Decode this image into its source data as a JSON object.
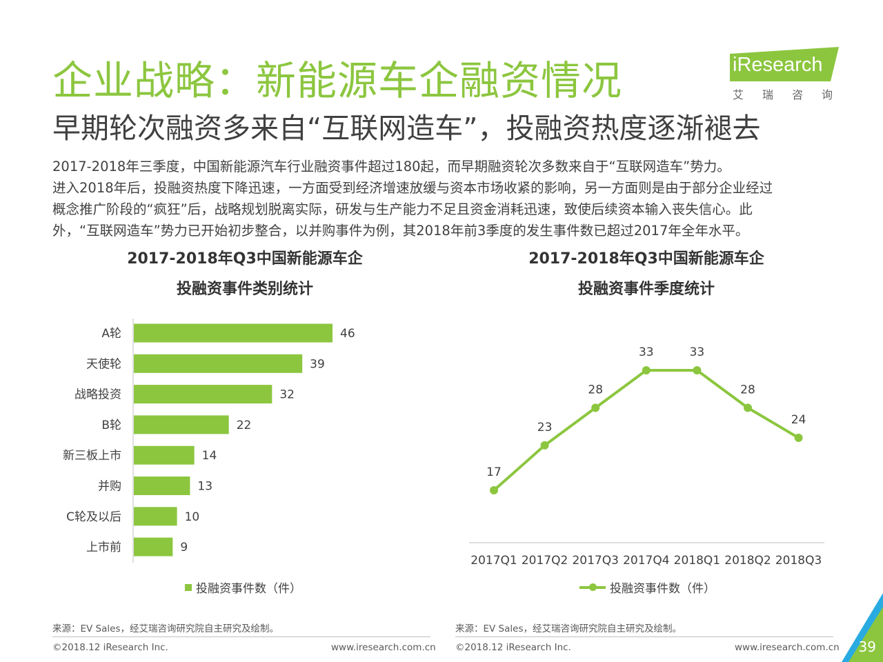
{
  "header": {
    "title": "企业战略：新能源车企融资情况",
    "subtitle": "早期轮次融资多来自“互联网造车”，投融资热度逐渐褪去",
    "logo_text": "iResearch",
    "logo_sub": "艾瑞咨询"
  },
  "paragraph": [
    "2017-2018年三季度，中国新能源汽车行业融资事件超过180起，而早期融资轮次多数来自于“互联网造车”势力。",
    "进入2018年后，投融资热度下降迅速，一方面受到经济增速放缓与资本市场收紧的影响，另一方面则是由于部分企业经过",
    "概念推广阶段的“疯狂”后，战略规划脱离实际，研发与生产能力不足且资金消耗迅速，致使后续资本输入丧失信心。此",
    "外，“互联网造车”势力已开始初步整合，以并购事件为例，其2018年前3季度的发生事件数已超过2017年全年水平。"
  ],
  "chart_data": [
    {
      "type": "bar",
      "orientation": "horizontal",
      "title_lines": [
        "2017-2018年Q3中国新能源车企",
        "投融资事件类别统计"
      ],
      "categories": [
        "A轮",
        "天使轮",
        "战略投资",
        "B轮",
        "新三板上市",
        "并购",
        "C轮及以后",
        "上市前"
      ],
      "series": [
        {
          "name": "投融资事件数（件）",
          "values": [
            46,
            39,
            32,
            22,
            14,
            13,
            10,
            9
          ]
        }
      ],
      "xlim": [
        0,
        50
      ],
      "grid": false,
      "legend_position": "bottom",
      "color": "#8CC63F"
    },
    {
      "type": "line",
      "title_lines": [
        "2017-2018年Q3中国新能源车企",
        "投融资事件季度统计"
      ],
      "categories": [
        "2017Q1",
        "2017Q2",
        "2017Q3",
        "2017Q4",
        "2018Q1",
        "2018Q2",
        "2018Q3"
      ],
      "series": [
        {
          "name": "投融资事件数（件）",
          "values": [
            17,
            23,
            28,
            33,
            33,
            28,
            24
          ]
        }
      ],
      "ylim": [
        10,
        36
      ],
      "grid": false,
      "legend_position": "bottom",
      "color": "#8CC63F"
    }
  ],
  "footer": {
    "source": "来源：EV Sales，经艾瑞咨询研究院自主研究及绘制。",
    "copyright": "©2018.12 iResearch Inc.",
    "url": "www.iresearch.com.cn",
    "page": "39"
  }
}
